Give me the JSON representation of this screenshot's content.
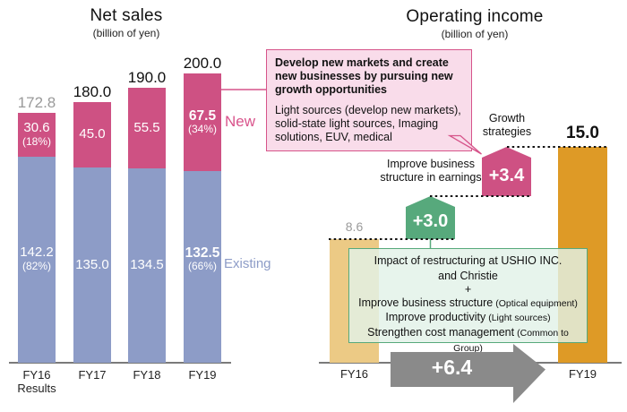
{
  "left_chart": {
    "title": "Net sales",
    "unit": "(billion of yen)",
    "new_label": "New",
    "existing_label": "Existing",
    "bars": [
      {
        "label": "FY16",
        "label2": "Results",
        "total": "172.8",
        "new_value": "30.6",
        "new_pct": "(18%)",
        "existing_value": "142.2",
        "existing_pct": "(82%)"
      },
      {
        "label": "FY17",
        "total": "180.0",
        "new_value": "45.0",
        "existing_value": "135.0"
      },
      {
        "label": "FY18",
        "total": "190.0",
        "new_value": "55.5",
        "existing_value": "134.5"
      },
      {
        "label": "FY19",
        "total": "200.0",
        "new_value": "67.5",
        "new_pct": "(34%)",
        "existing_value": "132.5",
        "existing_pct": "(66%)"
      }
    ]
  },
  "right_chart": {
    "title": "Operating income",
    "unit": "(billion of yen)",
    "fy16_label": "FY16",
    "fy16_value": "8.6",
    "fy19_label": "FY19",
    "fy19_value": "15.0",
    "green_step_value": "+3.0",
    "green_step_label": "Improve business structure in earnings",
    "pink_step_value": "+3.4",
    "pink_step_label": "Growth strategies",
    "change_arrow_value": "+6.4",
    "callout": {
      "heading": "Develop new markets and create new businesses by pursuing new growth opportunities",
      "body": "Light sources (develop new markets), solid-state light sources, Imaging solutions, EUV, medical"
    },
    "green_note": {
      "line1": "Impact of restructuring at USHIO INC.",
      "line2": "and Christie",
      "line3": "+",
      "line4_main": "Improve business structure",
      "line4_small": "(Optical equipment)",
      "line5_main": "Improve productivity",
      "line5_small": "(Light sources)",
      "line6_main": "Strengthen cost management",
      "line6_small": "(Common to Group)"
    }
  },
  "colors": {
    "new_segment": "#ce5183",
    "existing_segment": "#8d9cc7",
    "fy16_bar": "#ecca85",
    "fy19_bar": "#de9a26",
    "green_step": "#57a97c",
    "pink_step": "#ce5183",
    "arrow": "#8a8a8a",
    "callout_bg": "#f9dcea",
    "callout_border": "#d6548a",
    "green_note_border": "#57a97c",
    "gray_value_text": "#9a9a9a"
  },
  "chart_data": [
    {
      "type": "bar",
      "stacked": true,
      "title": "Net sales",
      "ylabel": "billion of yen",
      "categories": [
        "FY16 Results",
        "FY17",
        "FY18",
        "FY19"
      ],
      "series": [
        {
          "name": "Existing",
          "values": [
            142.2,
            135.0,
            134.5,
            132.5
          ],
          "percent_of_total": [
            "82%",
            null,
            null,
            "66%"
          ]
        },
        {
          "name": "New",
          "values": [
            30.6,
            45.0,
            55.5,
            67.5
          ],
          "percent_of_total": [
            "18%",
            null,
            null,
            "34%"
          ]
        }
      ],
      "totals": [
        172.8,
        180.0,
        190.0,
        200.0
      ],
      "ylim": [
        0,
        210
      ],
      "grid": false,
      "legend_position": "right of FY19 bar"
    },
    {
      "type": "bar",
      "subtype": "waterfall-bridge",
      "title": "Operating income",
      "ylabel": "billion of yen",
      "categories": [
        "FY16",
        "FY19"
      ],
      "values": [
        8.6,
        15.0
      ],
      "bridge_steps": [
        {
          "label": "Improve business structure in earnings",
          "value": 3.0
        },
        {
          "label": "Growth strategies",
          "value": 3.4
        }
      ],
      "total_change": 6.4,
      "ylim": [
        0,
        16
      ],
      "grid": false
    }
  ]
}
